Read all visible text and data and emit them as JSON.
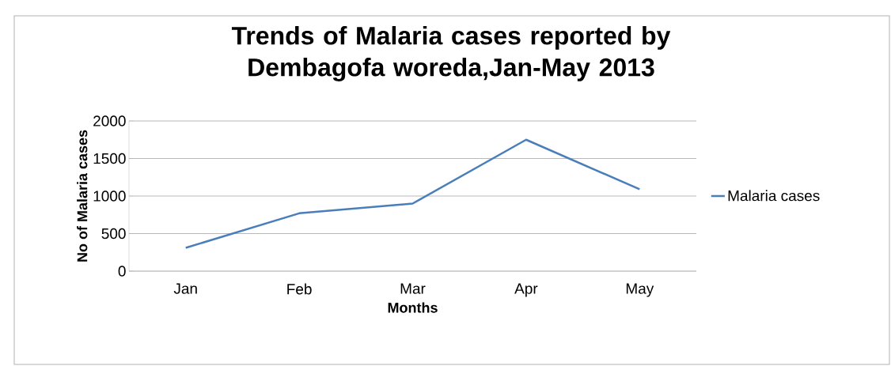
{
  "chart_data": {
    "type": "line",
    "title": "Trends of Malaria cases reported by Dembagofa woreda,Jan-May 2013",
    "xlabel": "Months",
    "ylabel": "No of Malaria cases",
    "categories": [
      "Jan",
      "Feb",
      "Mar",
      "Apr",
      "May"
    ],
    "series": [
      {
        "name": "Malaria cases",
        "color": "#4a7ebb",
        "values": [
          310,
          770,
          900,
          1750,
          1090
        ]
      }
    ],
    "ylim": [
      0,
      2000
    ],
    "yticks": [
      0,
      500,
      1000,
      1500,
      2000
    ],
    "grid": "y",
    "legend": "right"
  }
}
